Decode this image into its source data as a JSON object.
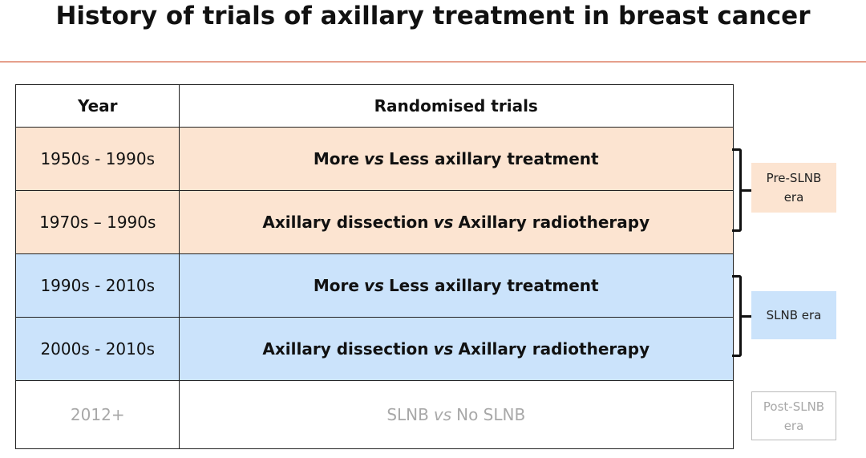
{
  "header": {
    "title": "History of trials of axillary treatment in breast cancer"
  },
  "table": {
    "headers": [
      "Year",
      "Randomised trials"
    ],
    "rows": [
      {
        "year": "1950s - 1990s",
        "trial": {
          "before": "More",
          "vs": "vs",
          "after": "Less axillary treatment"
        }
      },
      {
        "year": "1970s – 1990s",
        "trial": {
          "before": "Axillary dissection",
          "vs": "vs",
          "after": "Axillary radiotherapy"
        }
      },
      {
        "year": "1990s - 2010s",
        "trial": {
          "before": "More",
          "vs": "vs",
          "after": "Less axillary treatment"
        }
      },
      {
        "year": "2000s - 2010s",
        "trial": {
          "before": "Axillary dissection",
          "vs": "vs",
          "after": "Axillary radiotherapy"
        }
      },
      {
        "year": "2012+",
        "trial": {
          "before": "SLNB",
          "vs": "vs",
          "after": "No SLNB"
        }
      }
    ]
  },
  "eras": [
    {
      "label": "Pre-SLNB era"
    },
    {
      "label": "SLNB era"
    },
    {
      "label": "Post-SLNB era"
    }
  ]
}
